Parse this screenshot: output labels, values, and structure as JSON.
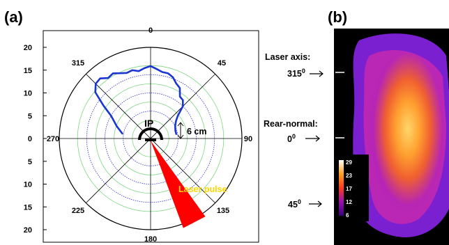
{
  "chart_data": [
    {
      "panel_label": "(a)",
      "type": "polar-line",
      "angle_labels": [
        "0",
        "45",
        "90",
        "135",
        "180",
        "225",
        "270",
        "315"
      ],
      "radial_axis": {
        "ticks_upper": [
          "20",
          "15",
          "10",
          "5",
          "0"
        ],
        "ticks_lower": [
          "5",
          "10",
          "15",
          "20"
        ],
        "range": [
          0,
          20
        ]
      },
      "grid_circles": [
        4,
        8,
        12,
        16,
        20
      ],
      "series": [
        {
          "color": "#1a35d0",
          "points": [
            {
              "angle": 280,
              "r": 6.3
            },
            {
              "angle": 290,
              "r": 7.9
            },
            {
              "angle": 300,
              "r": 10.0
            },
            {
              "angle": 305,
              "r": 12.6
            },
            {
              "angle": 310,
              "r": 15.8
            },
            {
              "angle": 315,
              "r": 17.0
            },
            {
              "angle": 320,
              "r": 17.2
            },
            {
              "angle": 325,
              "r": 16.2
            },
            {
              "angle": 330,
              "r": 16.5
            },
            {
              "angle": 335,
              "r": 15.8
            },
            {
              "angle": 340,
              "r": 15.3
            },
            {
              "angle": 345,
              "r": 15.5
            },
            {
              "angle": 350,
              "r": 15.0
            },
            {
              "angle": 355,
              "r": 15.5
            },
            {
              "angle": 0,
              "r": 15.9
            },
            {
              "angle": 5,
              "r": 15.3
            },
            {
              "angle": 10,
              "r": 14.8
            },
            {
              "angle": 15,
              "r": 14.8
            },
            {
              "angle": 20,
              "r": 14.3
            },
            {
              "angle": 25,
              "r": 13.3
            },
            {
              "angle": 30,
              "r": 12.8
            },
            {
              "angle": 35,
              "r": 11.2
            },
            {
              "angle": 40,
              "r": 11.0
            },
            {
              "angle": 45,
              "r": 10.0
            },
            {
              "angle": 50,
              "r": 7.8
            },
            {
              "angle": 55,
              "r": 6.8
            },
            {
              "angle": 62,
              "r": 6.1
            },
            {
              "angle": 72,
              "r": 5.7
            },
            {
              "angle": 80,
              "r": 5.7
            }
          ]
        }
      ],
      "annotations": {
        "ip": "IP",
        "scale": "6 cm",
        "laser": "Laser pulse"
      },
      "laser_wedge_angles": [
        145,
        160
      ],
      "colors": {
        "laser": "#ff0000",
        "laser_text": "#ffd700",
        "grid_solid": "#7fd67f",
        "grid_dotted": "#2a2ad0"
      }
    },
    {
      "panel_label": "(b)",
      "type": "image-heatmap",
      "labels": [
        {
          "line1": "Laser axis:",
          "line2": "315",
          "sup": "0"
        },
        {
          "line1": "Rear-normal:",
          "line2": "0",
          "sup": "0"
        },
        {
          "line1": "",
          "line2": "45",
          "sup": "0"
        }
      ],
      "colorbar_ticks": [
        "29",
        "23",
        "17",
        "12",
        "6"
      ],
      "colors": [
        "#000000",
        "#3a0070",
        "#7a10c0",
        "#c020a0",
        "#ff4a1a",
        "#ff9a20",
        "#ffe060",
        "#ffffff"
      ]
    }
  ]
}
